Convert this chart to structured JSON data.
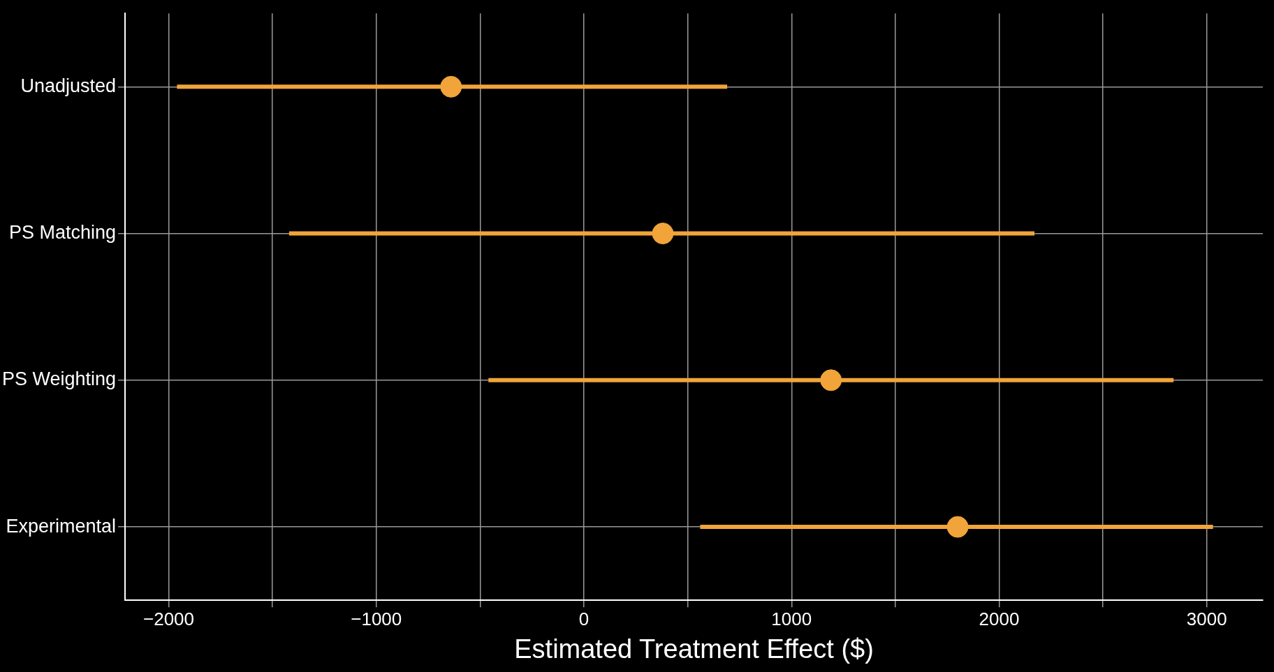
{
  "chart_data": {
    "type": "scatter",
    "orientation": "horizontal",
    "xlabel": "Estimated Treatment Effect ($)",
    "categories": [
      "Unadjusted",
      "PS Matching",
      "PS Weighting",
      "Experimental"
    ],
    "values": [
      -640,
      380,
      1190,
      1800
    ],
    "errors": [
      [
        -1960,
        690
      ],
      [
        -1420,
        2170
      ],
      [
        -460,
        2840
      ],
      [
        560,
        3030
      ]
    ],
    "color": "#f0a43a",
    "marker": "circle",
    "xlim": [
      -2210,
      3270
    ],
    "xticks": [
      -2000,
      {
        "value": -1500,
        "label": null
      },
      -1000,
      {
        "value": -500,
        "label": null
      },
      0,
      {
        "value": 500,
        "label": null
      },
      1000,
      {
        "value": 1500,
        "label": null
      },
      2000,
      {
        "value": 2500,
        "label": null
      },
      3000
    ],
    "grid": true
  }
}
